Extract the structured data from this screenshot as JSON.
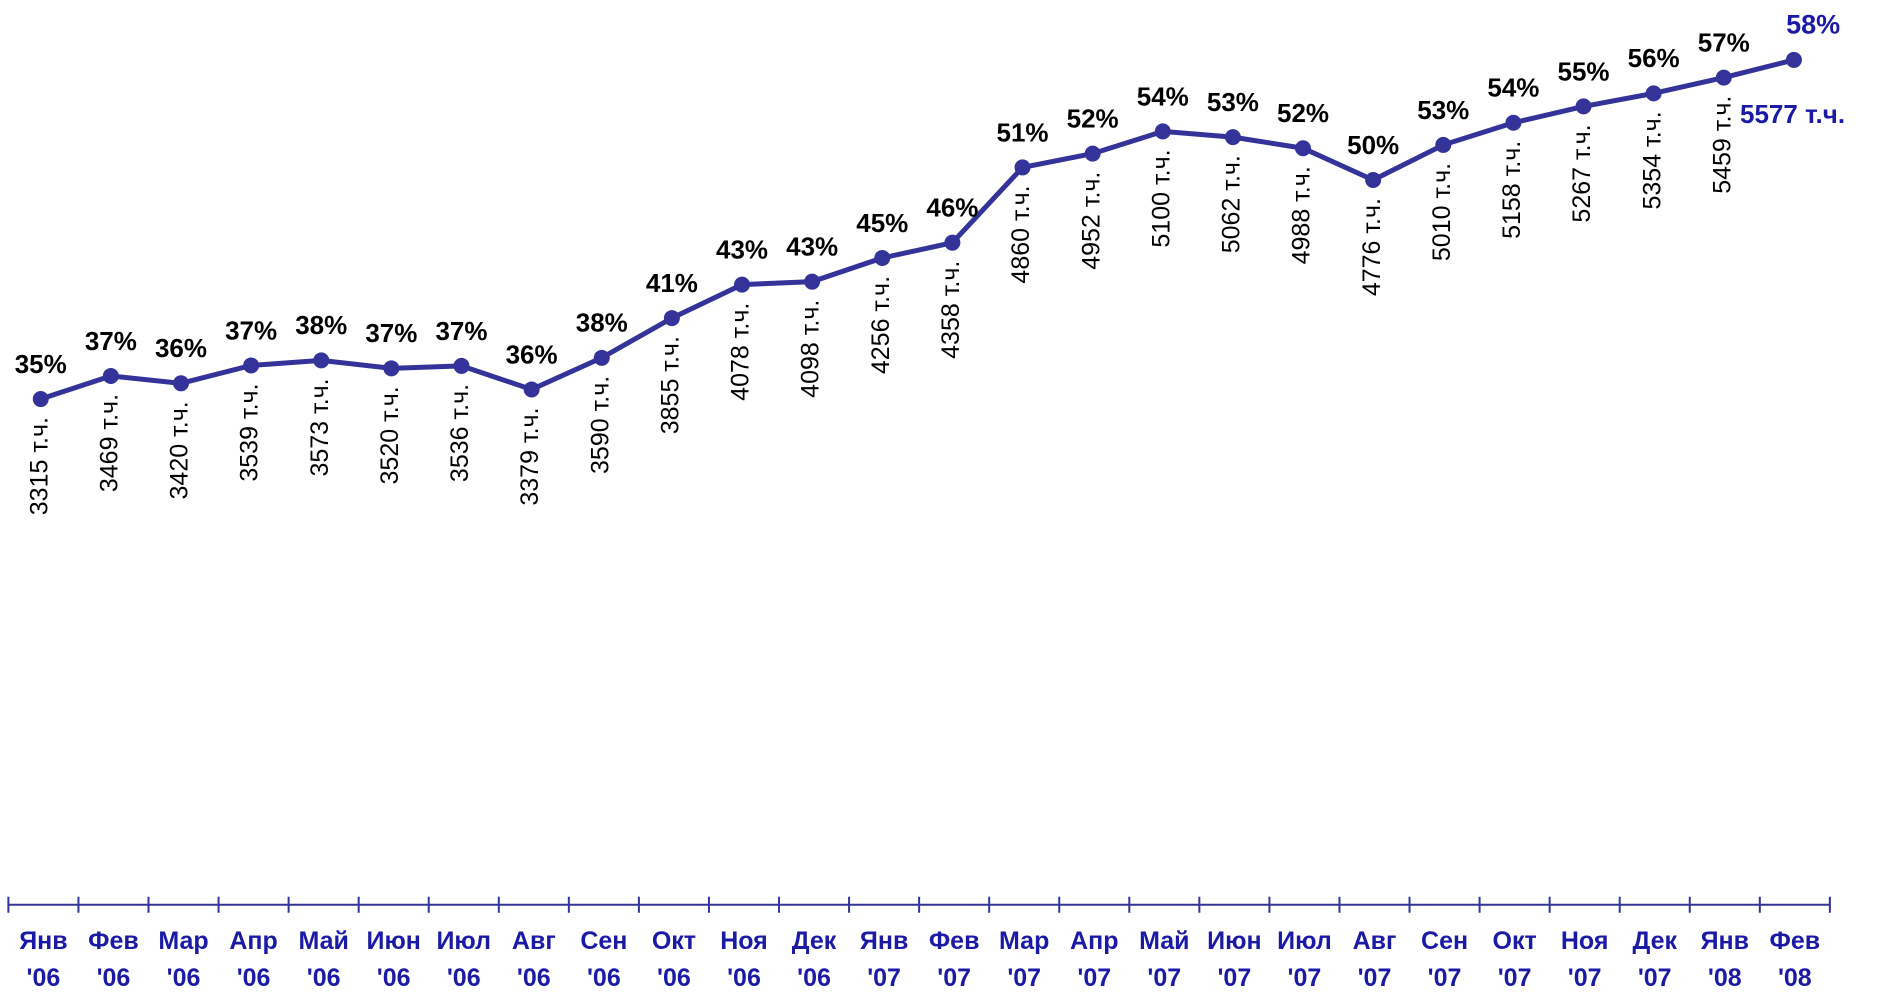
{
  "chart_data": {
    "type": "line",
    "categories": [
      "Янв '06",
      "Фев '06",
      "Мар '06",
      "Апр '06",
      "Май '06",
      "Июн '06",
      "Июл '06",
      "Авг '06",
      "Сен '06",
      "Окт '06",
      "Ноя '06",
      "Дек '06",
      "Янв '07",
      "Фев '07",
      "Мар '07",
      "Апр '07",
      "Май '07",
      "Июн '07",
      "Июл '07",
      "Авг '07",
      "Сен '07",
      "Окт '07",
      "Ноя '07",
      "Дек '07",
      "Янв '08",
      "Фев '08"
    ],
    "series": [
      {
        "color": "#333399",
        "values": [
          3315,
          3469,
          3420,
          3539,
          3573,
          3520,
          3536,
          3379,
          3590,
          3855,
          4078,
          4098,
          4256,
          4358,
          4860,
          4952,
          5100,
          5062,
          4988,
          4776,
          5010,
          5158,
          5267,
          5354,
          5459,
          5577
        ],
        "value_labels": [
          "3315 т.ч.",
          "3469 т.ч.",
          "3420 т.ч.",
          "3539 т.ч.",
          "3573 т.ч.",
          "3520 т.ч.",
          "3536 т.ч.",
          "3379 т.ч.",
          "3590 т.ч.",
          "3855 т.ч.",
          "4078 т.ч.",
          "4098 т.ч.",
          "4256 т.ч.",
          "4358 т.ч.",
          "4860 т.ч.",
          "4952 т.ч.",
          "5100 т.ч.",
          "5062 т.ч.",
          "4988 т.ч.",
          "4776 т.ч.",
          "5010 т.ч.",
          "5158 т.ч.",
          "5267 т.ч.",
          "5354 т.ч.",
          "5459 т.ч.",
          "5577 т.ч."
        ]
      },
      {
        "values": [
          35,
          37,
          36,
          37,
          38,
          37,
          37,
          36,
          38,
          41,
          43,
          43,
          45,
          46,
          51,
          52,
          54,
          53,
          52,
          50,
          53,
          54,
          55,
          56,
          57,
          58
        ],
        "value_labels": [
          "35%",
          "37%",
          "36%",
          "37%",
          "38%",
          "37%",
          "37%",
          "36%",
          "38%",
          "41%",
          "43%",
          "43%",
          "45%",
          "46%",
          "51%",
          "52%",
          "54%",
          "53%",
          "52%",
          "50%",
          "53%",
          "54%",
          "55%",
          "56%",
          "57%",
          "58%"
        ]
      }
    ],
    "highlight_color": "#1a1aa6"
  }
}
